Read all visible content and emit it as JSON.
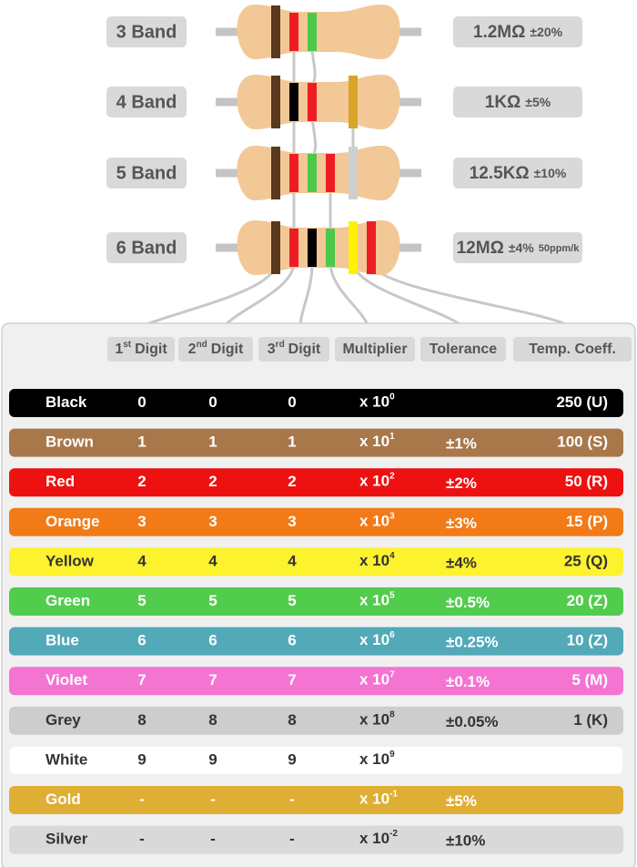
{
  "resistors": [
    {
      "label": "3 Band",
      "value": "1.2MΩ",
      "tolerance": "±20%",
      "bands": [
        "#5a3a1e",
        "#ee1c25",
        "#4cc84a"
      ]
    },
    {
      "label": "4 Band",
      "value": "1KΩ",
      "tolerance": "±5%",
      "bands": [
        "#5a3a1e",
        "#000000",
        "#ee1c25",
        "#d8a42a"
      ]
    },
    {
      "label": "5 Band",
      "value": "12.5KΩ",
      "tolerance": "±10%",
      "bands": [
        "#5a3a1e",
        "#ee1c25",
        "#4cc84a",
        "#ee1c25",
        "#cfcfcf"
      ]
    },
    {
      "label": "6 Band",
      "value": "12MΩ",
      "tolerance": "±4%",
      "tempco": "50ppm/k",
      "bands": [
        "#5a3a1e",
        "#ee1c25",
        "#000000",
        "#4cc84a",
        "#fff200",
        "#ee1c25"
      ]
    }
  ],
  "table": {
    "headers": [
      {
        "text": "1",
        "sup": "st",
        "suffix": "Digit"
      },
      {
        "text": "2",
        "sup": "nd",
        "suffix": "Digit"
      },
      {
        "text": "3",
        "sup": "rd",
        "suffix": "Digit"
      },
      {
        "text": "Multiplier"
      },
      {
        "text": "Tolerance"
      },
      {
        "text": "Temp. Coeff."
      }
    ],
    "rows": [
      {
        "name": "Black",
        "color": "#000000",
        "digit1": "0",
        "digit2": "0",
        "digit3": "0",
        "multiplier": {
          "base": "x 10",
          "exp": "0"
        },
        "tempco": "250 (U)"
      },
      {
        "name": "Brown",
        "color": "#a8784a",
        "digit1": "1",
        "digit2": "1",
        "digit3": "1",
        "multiplier": {
          "base": "x 10",
          "exp": "1"
        },
        "tolerance": "±1%",
        "tempco": "100 (S)"
      },
      {
        "name": "Red",
        "color": "#ee1111",
        "digit1": "2",
        "digit2": "2",
        "digit3": "2",
        "multiplier": {
          "base": "x 10",
          "exp": "2"
        },
        "tolerance": "±2%",
        "tempco": "50 (R)"
      },
      {
        "name": "Orange",
        "color": "#f27a17",
        "digit1": "3",
        "digit2": "3",
        "digit3": "3",
        "multiplier": {
          "base": "x 10",
          "exp": "3"
        },
        "tolerance": "±3%",
        "tempco": "15 (P)"
      },
      {
        "name": "Yellow",
        "color": "#fcf22e",
        "digit1": "4",
        "digit2": "4",
        "digit3": "4",
        "multiplier": {
          "base": "x 10",
          "exp": "4"
        },
        "tolerance": "±4%",
        "tempco": "25 (Q)"
      },
      {
        "name": "Green",
        "color": "#52cc4c",
        "digit1": "5",
        "digit2": "5",
        "digit3": "5",
        "multiplier": {
          "base": "x 10",
          "exp": "5"
        },
        "tolerance": "±0.5%",
        "tempco": "20 (Z)"
      },
      {
        "name": "Blue",
        "color": "#52a9b8",
        "digit1": "6",
        "digit2": "6",
        "digit3": "6",
        "multiplier": {
          "base": "x 10",
          "exp": "6"
        },
        "tolerance": "±0.25%",
        "tempco": "10 (Z)"
      },
      {
        "name": "Violet",
        "color": "#f474d2",
        "digit1": "7",
        "digit2": "7",
        "digit3": "7",
        "multiplier": {
          "base": "x 10",
          "exp": "7"
        },
        "tolerance": "±0.1%",
        "tempco": "5 (M)"
      },
      {
        "name": "Grey",
        "color": "#cdcdcd",
        "digit1": "8",
        "digit2": "8",
        "digit3": "8",
        "multiplier": {
          "base": "x 10",
          "exp": "8"
        },
        "tolerance": "±0.05%",
        "tempco": "1 (K)"
      },
      {
        "name": "White",
        "color": "#ffffff",
        "digit1": "9",
        "digit2": "9",
        "digit3": "9",
        "multiplier": {
          "base": "x 10",
          "exp": "9"
        }
      },
      {
        "name": "Gold",
        "color": "#dfae34",
        "digit1": "-",
        "digit2": "-",
        "digit3": "-",
        "multiplier": {
          "base": "x 10",
          "exp": "-1"
        },
        "tolerance": "±5%"
      },
      {
        "name": "Silver",
        "color": "#d9d9d9",
        "digit1": "-",
        "digit2": "-",
        "digit3": "-",
        "multiplier": {
          "base": "x 10",
          "exp": "-2"
        },
        "tolerance": "±10%"
      }
    ]
  }
}
